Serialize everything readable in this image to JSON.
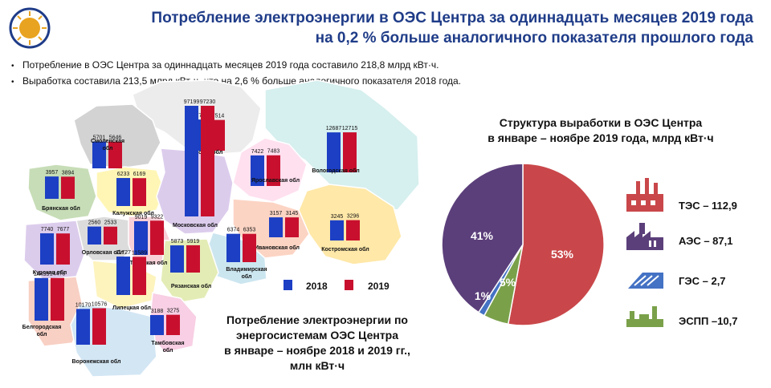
{
  "title": {
    "line1": "Потребление электроэнергии в ОЭС Центра за одиннадцать  месяцев 2019 года",
    "line2": "на 0,2 % больше аналогичного показателя прошлого года"
  },
  "bullets": [
    "Потребление  в ОЭС Центра за одиннадцать  месяцев 2019 года составило  218,8 млрд кВт·ч.",
    "Выработка  составила  213,5 млрд кВт·ч, что на 2,6 % больше аналогичного  показателя  2018 года."
  ],
  "map_caption": [
    "Потребление электроэнергии по",
    "энергосистемам ОЭС Центра",
    "в январе – ноябре 2018 и 2019 гг.,",
    "млн кВт·ч"
  ],
  "legend": {
    "y2018": "2018",
    "y2019": "2019"
  },
  "pie_title": [
    "Структура выработки в ОЭС Центра",
    "в январе – ноябре 2019 года, млрд кВт·ч"
  ],
  "colors": {
    "c2018": "#1c3fc4",
    "c2019": "#c8102e",
    "title": "#1f3c88",
    "tes": "#c9474a",
    "aes": "#5b3f7a",
    "ges": "#4472c4",
    "espp": "#7aa14a"
  },
  "chart_data": [
    {
      "type": "bar",
      "series": [
        {
          "name": "2018"
        },
        {
          "name": "2019"
        }
      ],
      "regions": [
        {
          "name": "Смоленская обл",
          "v2018": 5701,
          "v2019": 5646
        },
        {
          "name": "Тверская обл",
          "v2018": 7725,
          "v2019": 7514
        },
        {
          "name": "Ярославская обл",
          "v2018": 7422,
          "v2019": 7483
        },
        {
          "name": "Вологодская обл",
          "v2018": 12687,
          "v2019": 12715
        },
        {
          "name": "Брянская обл",
          "v2018": 3957,
          "v2019": 3894
        },
        {
          "name": "Калужская обл",
          "v2018": 6233,
          "v2019": 6169
        },
        {
          "name": "Московская обл",
          "v2018": 97199,
          "v2019": 97230
        },
        {
          "name": "Ивановская обл",
          "v2018": 3157,
          "v2019": 3145
        },
        {
          "name": "Костромская обл",
          "v2018": 3245,
          "v2019": 3296
        },
        {
          "name": "Орловская обл",
          "v2018": 2560,
          "v2019": 2533
        },
        {
          "name": "Тульская обл",
          "v2018": 9019,
          "v2019": 9322
        },
        {
          "name": "Владимирская обл",
          "v2018": 6374,
          "v2019": 6353
        },
        {
          "name": "Курская обл",
          "v2018": 7740,
          "v2019": 7677
        },
        {
          "name": "Рязанская обл",
          "v2018": 5873,
          "v2019": 5919
        },
        {
          "name": "Липецкая обл",
          "v2018": 11727,
          "v2019": 11589
        },
        {
          "name": "Белгородская обл",
          "v2018": 14433,
          "v2019": 14473
        },
        {
          "name": "Тамбовская обл",
          "v2018": 3188,
          "v2019": 3275
        },
        {
          "name": "Воронежская обл",
          "v2018": 10170,
          "v2019": 10576
        }
      ]
    },
    {
      "type": "pie",
      "title": "Структура выработки в ОЭС Центра в январе – ноябре 2019 года, млрд кВт·ч",
      "slices": [
        {
          "name": "ТЭС",
          "value": 112.9,
          "percent": "53%",
          "legend": "ТЭС – 112,9"
        },
        {
          "name": "ЭСПП",
          "value": 10.7,
          "percent": "5%",
          "legend": "ЭСПП –10,7"
        },
        {
          "name": "ГЭС",
          "value": 2.7,
          "percent": "1%",
          "legend": "ГЭС – 2,7"
        },
        {
          "name": "АЭС",
          "value": 87.1,
          "percent": "41%",
          "legend": "АЭС – 87,1"
        }
      ]
    }
  ]
}
